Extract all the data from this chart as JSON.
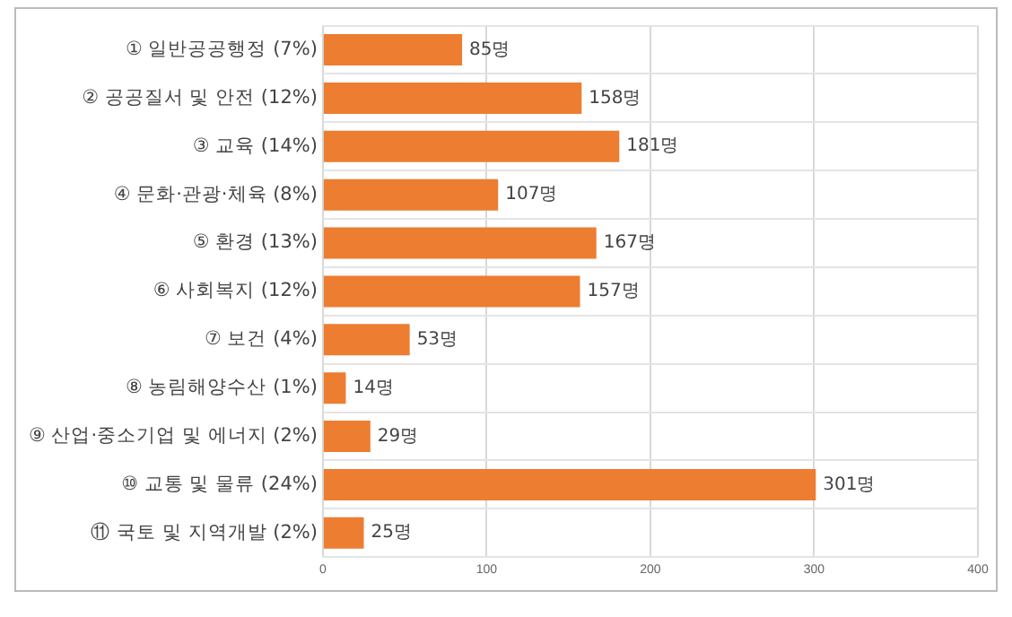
{
  "chart_data": {
    "type": "bar",
    "orientation": "horizontal",
    "categories": [
      "① 일반공공행정 (7%)",
      "② 공공질서 및 안전 (12%)",
      "③ 교육 (14%)",
      "④ 문화·관광·체육 (8%)",
      "⑤ 환경 (13%)",
      "⑥ 사회복지 (12%)",
      "⑦ 보건 (4%)",
      "⑧ 농림해양수산 (1%)",
      "⑨ 산업·중소기업 및 에너지 (2%)",
      "⑩ 교통 및 물류 (24%)",
      "⑪ 국토 및 지역개발 (2%)"
    ],
    "values": [
      85,
      158,
      181,
      107,
      167,
      157,
      53,
      14,
      29,
      301,
      25
    ],
    "value_labels": [
      "85명",
      "158명",
      "181명",
      "107명",
      "167명",
      "157명",
      "53명",
      "14명",
      "29명",
      "301명",
      "25명"
    ],
    "color": "#ed7d31",
    "xlim": [
      0,
      400
    ],
    "xticks": [
      0,
      100,
      200,
      300,
      400
    ],
    "grid": true
  }
}
